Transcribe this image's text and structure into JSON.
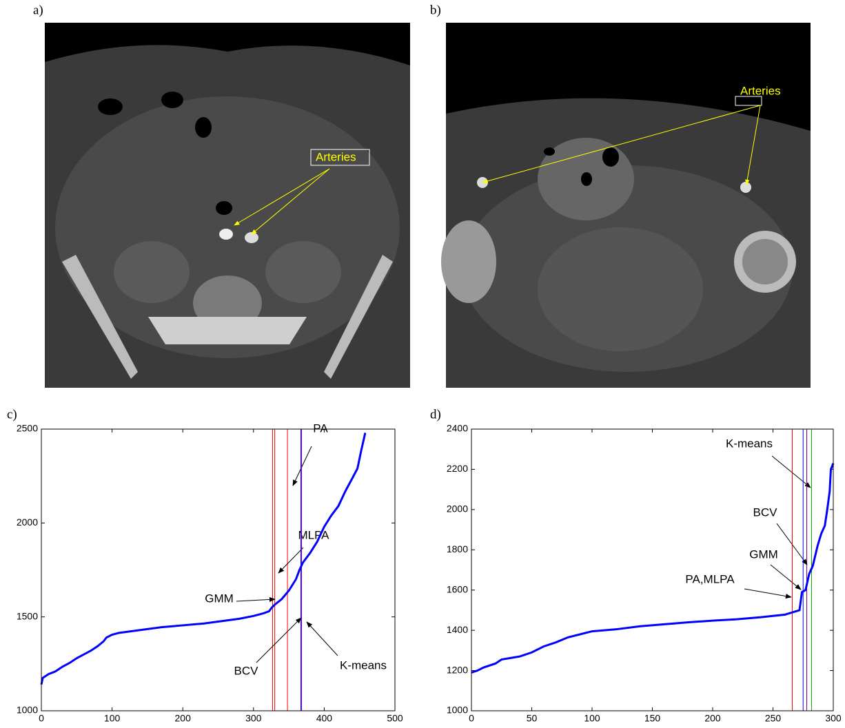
{
  "panels": [
    {
      "label": "a)",
      "annotation": "Arteries"
    },
    {
      "label": "b)",
      "annotation": "Arteries"
    }
  ],
  "chart_data": [
    {
      "type": "line",
      "panel_label": "c)",
      "xlim": [
        0,
        500
      ],
      "xticks": [
        0,
        100,
        200,
        300,
        400,
        500
      ],
      "ylim": [
        1000,
        2500
      ],
      "yticks": [
        1000,
        1500,
        2000,
        2500
      ],
      "series": [
        {
          "color": "#0000ff",
          "x": [
            0,
            2,
            10,
            20,
            30,
            40,
            50,
            60,
            70,
            80,
            88,
            92,
            100,
            110,
            130,
            150,
            170,
            200,
            230,
            260,
            280,
            300,
            315,
            322,
            326,
            330,
            340,
            350,
            360,
            365,
            370,
            380,
            390,
            400,
            410,
            420,
            430,
            440,
            447,
            452,
            458
          ],
          "values": [
            1140,
            1175,
            1195,
            1210,
            1235,
            1255,
            1280,
            1300,
            1320,
            1345,
            1370,
            1390,
            1405,
            1415,
            1425,
            1435,
            1445,
            1455,
            1465,
            1480,
            1490,
            1505,
            1520,
            1530,
            1550,
            1565,
            1595,
            1640,
            1700,
            1750,
            1790,
            1840,
            1900,
            1980,
            2040,
            2090,
            2170,
            2240,
            2290,
            2380,
            2480
          ]
        }
      ],
      "markers": [
        {
          "x": 348,
          "color": "#ff0000",
          "label": "PA"
        },
        {
          "x": 330,
          "color": "#ff0000",
          "label": "MLPA"
        },
        {
          "x": 327,
          "color": "#ff0000",
          "label": "GMM"
        },
        {
          "x": 367,
          "color": "#0000ff",
          "label": "BCV"
        },
        {
          "x": 368,
          "color": "#800080",
          "label": "K-means"
        }
      ]
    },
    {
      "type": "line",
      "panel_label": "d)",
      "xlim": [
        0,
        300
      ],
      "xticks": [
        0,
        50,
        100,
        150,
        200,
        250,
        300
      ],
      "ylim": [
        1000,
        2400
      ],
      "yticks": [
        1000,
        1200,
        1400,
        1600,
        1800,
        2000,
        2200,
        2400
      ],
      "series": [
        {
          "color": "#0000ff",
          "x": [
            0,
            5,
            10,
            20,
            25,
            40,
            50,
            60,
            70,
            80,
            90,
            100,
            120,
            140,
            160,
            180,
            200,
            220,
            240,
            260,
            272,
            274,
            277,
            280,
            283,
            287,
            290,
            293,
            295,
            297,
            298,
            300
          ],
          "values": [
            1190,
            1200,
            1215,
            1235,
            1255,
            1270,
            1290,
            1320,
            1340,
            1365,
            1380,
            1395,
            1405,
            1420,
            1430,
            1440,
            1448,
            1455,
            1465,
            1478,
            1500,
            1590,
            1600,
            1680,
            1720,
            1820,
            1880,
            1920,
            2000,
            2090,
            2200,
            2230
          ]
        }
      ],
      "markers": [
        {
          "x": 282,
          "color": "#00aa00",
          "label": "K-means"
        },
        {
          "x": 278,
          "color": "#800080",
          "label": "BCV"
        },
        {
          "x": 275,
          "color": "#0000ff",
          "label": "GMM"
        },
        {
          "x": 266,
          "color": "#ff0000",
          "label": "PA,MLPA"
        }
      ]
    }
  ]
}
